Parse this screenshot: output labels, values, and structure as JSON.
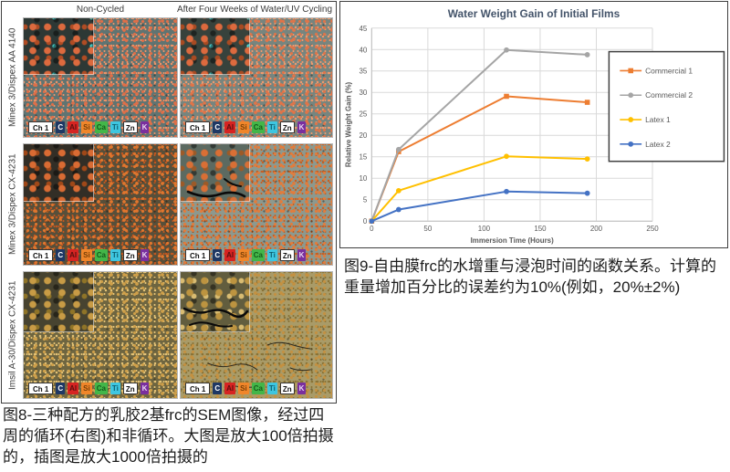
{
  "figure8": {
    "col_headers": [
      "Non-Cycled",
      "After Four Weeks of Water/UV Cycling"
    ],
    "rows": [
      {
        "label": "Minex 3/Dispex AA 4140",
        "panels": [
          "r1l",
          "r1r"
        ]
      },
      {
        "label": "Minex 3/Dispex CX-4231",
        "panels": [
          "r2l",
          "r2r"
        ]
      },
      {
        "label": "Imsil A-30/Dispex CX-4231",
        "panels": [
          "r3l",
          "r3r"
        ]
      }
    ],
    "chips": [
      {
        "label": "Ch 1",
        "bg": "#ffffff",
        "fg": "#111111",
        "border": true,
        "wide": true
      },
      {
        "label": "C",
        "bg": "#1f3864",
        "fg": "#ffffff"
      },
      {
        "label": "Al",
        "bg": "#d62422",
        "fg": "#5a0f0f"
      },
      {
        "label": "Si",
        "bg": "#f0862a",
        "fg": "#7a4008"
      },
      {
        "label": "Ca",
        "bg": "#43b649",
        "fg": "#135c1a"
      },
      {
        "label": "Ti",
        "bg": "#3ec6e0",
        "fg": "#0d5f70"
      },
      {
        "label": "Zn",
        "bg": "#ffffff",
        "fg": "#111111",
        "border": true
      },
      {
        "label": "K",
        "bg": "#7a2f9e",
        "fg": "#e8d5f2"
      }
    ],
    "panel_styles": {
      "r1l": {
        "base": "#5f7472",
        "dot": "#df6f48",
        "dot2": "#ee9368",
        "ibase": "#2d3835",
        "idot": "#dd6a3e",
        "idot2": "#b04c24",
        "iaccent": "#45d2cc"
      },
      "r1r": {
        "base": "#76857f",
        "dot": "#e07448",
        "dot2": "#ef9a6e",
        "ibase": "#37423c",
        "idot": "#dd6a3e",
        "idot2": "#a84a22",
        "iaccent": "#4fd8d8"
      },
      "r2l": {
        "base": "#574f3a",
        "dot": "#e0762e",
        "dot2": "#c2571f",
        "ibase": "#322e26",
        "idot": "#d96b33",
        "idot2": "#a04818"
      },
      "r2r": {
        "base": "#8c998f",
        "dot": "#e27c3c",
        "dot2": "#c75f22",
        "ibase": "#5c6a61",
        "idot": "#d96f35",
        "idot2": "#9c5a28",
        "cracks": "inset"
      },
      "r3l": {
        "base": "#6e6540",
        "dot": "#cfa04a",
        "dot2": "#e5c376",
        "ibase": "#474330",
        "idot": "#c89b45",
        "idot2": "#8f7428"
      },
      "r3r": {
        "base": "#a99b68",
        "dot": "#c49141",
        "dot2": "#8a7336",
        "ibase": "#625d3e",
        "idot": "#bd9440",
        "idot2": "#d9bc72",
        "cracks": "full"
      }
    },
    "caption": "图8-三种配方的乳胶2基frc的SEM图像，经过四周的循环(右图)和非循环。大图是放大100倍拍摄的，插图是放大1000倍拍摄的"
  },
  "figure9": {
    "caption": "图9-自由膜frc的水增重与浸泡时间的函数关系。计算的重量增加百分比的误差约为10%(例如，20%±2%)"
  },
  "chart_data": {
    "type": "line",
    "title": "Water Weight Gain of Initial Films",
    "xlabel": "Immersion Time (Hours)",
    "ylabel": "Relative Weight Gain (%)",
    "xlim": [
      0,
      250
    ],
    "ylim": [
      0,
      45
    ],
    "xticks": [
      0,
      50,
      100,
      150,
      200,
      250
    ],
    "yticks": [
      0,
      5,
      10,
      15,
      20,
      25,
      30,
      35,
      40,
      45
    ],
    "grid": true,
    "legend_position": "right-inside-framed-box",
    "x": [
      0,
      24,
      120,
      192
    ],
    "series": [
      {
        "name": "Commercial 1",
        "color": "#ED7D31",
        "marker": "square",
        "values": [
          0,
          16.2,
          29.1,
          27.7
        ]
      },
      {
        "name": "Commercial 2",
        "color": "#A5A5A5",
        "marker": "circle",
        "values": [
          0,
          16.7,
          39.9,
          38.8
        ]
      },
      {
        "name": "Latex 1",
        "color": "#FFC000",
        "marker": "circle",
        "values": [
          0,
          7.1,
          15.1,
          14.5
        ]
      },
      {
        "name": "Latex 2",
        "color": "#4472C4",
        "marker": "circle",
        "values": [
          0,
          2.7,
          6.9,
          6.5
        ]
      }
    ],
    "colors": {
      "title": "#44546A",
      "tick_label": "#595959",
      "axis_title": "#595959",
      "gridline": "#D9D9D9",
      "axis_line": "#BFBFBF",
      "legend_border": "#404040",
      "legend_text": "#595959"
    }
  }
}
